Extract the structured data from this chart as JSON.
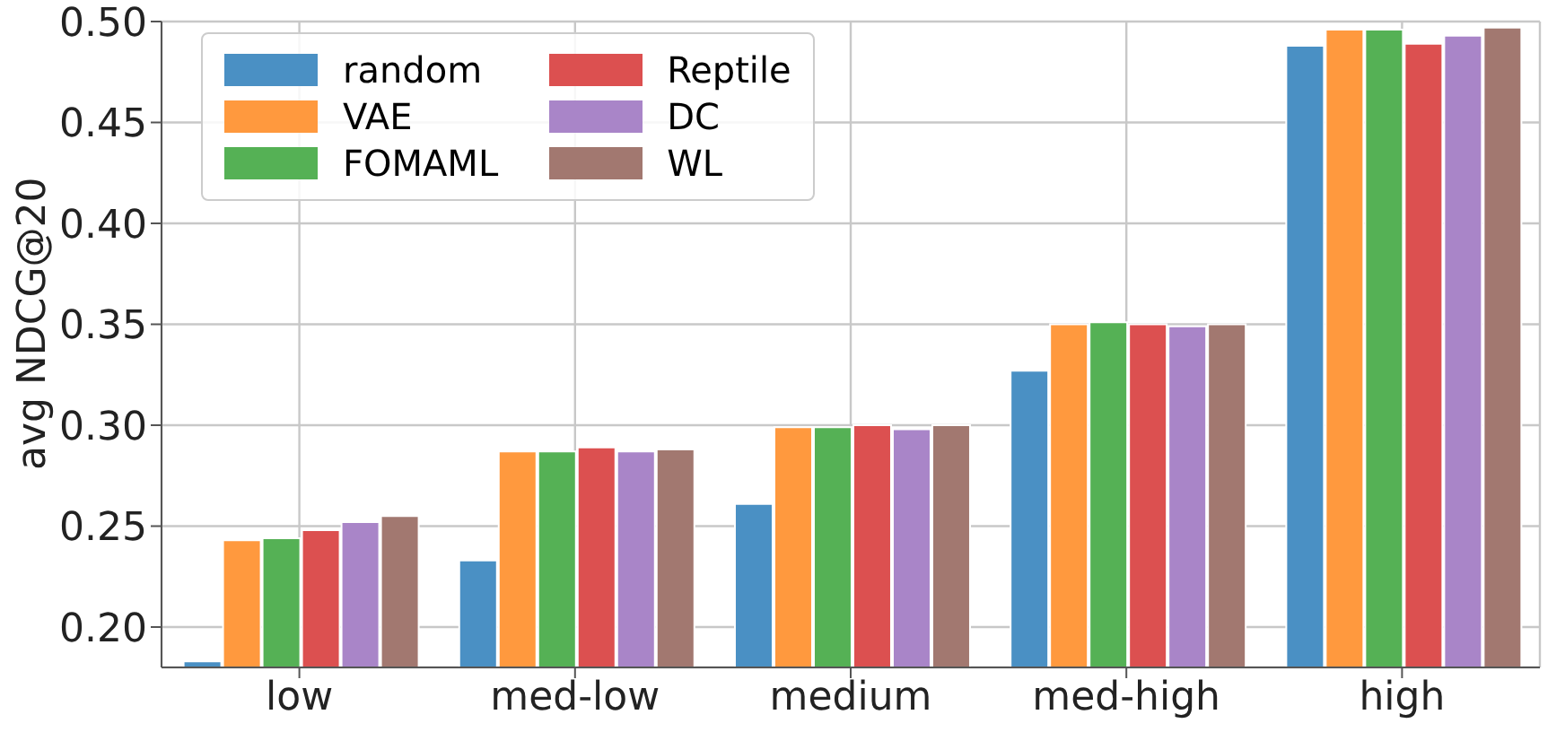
{
  "chart_data": {
    "type": "bar",
    "ylabel": "avg NDCG@20",
    "categories": [
      "low",
      "med-low",
      "medium",
      "med-high",
      "high"
    ],
    "series": [
      {
        "name": "random",
        "color": "#4a90c4",
        "values": [
          0.183,
          0.233,
          0.261,
          0.327,
          0.488
        ]
      },
      {
        "name": "VAE",
        "color": "#ff993e",
        "values": [
          0.243,
          0.287,
          0.299,
          0.35,
          0.496
        ]
      },
      {
        "name": "FOMAML",
        "color": "#55b155",
        "values": [
          0.244,
          0.287,
          0.299,
          0.351,
          0.496
        ]
      },
      {
        "name": "Reptile",
        "color": "#dc5050",
        "values": [
          0.248,
          0.289,
          0.3,
          0.35,
          0.489
        ]
      },
      {
        "name": "DC",
        "color": "#a985c8",
        "values": [
          0.252,
          0.287,
          0.298,
          0.349,
          0.493
        ]
      },
      {
        "name": "WL",
        "color": "#a27870",
        "values": [
          0.255,
          0.288,
          0.3,
          0.35,
          0.497
        ]
      }
    ],
    "ylim": [
      0.18,
      0.5
    ],
    "yticks": [
      {
        "value": 0.2,
        "label": "0.20"
      },
      0.25,
      {
        "value": 0.3,
        "label": "0.30"
      },
      0.35,
      {
        "value": 0.4,
        "label": "0.40"
      },
      0.45,
      {
        "value": 0.5,
        "label": "0.50"
      }
    ],
    "grid": true,
    "legend": "top left"
  }
}
